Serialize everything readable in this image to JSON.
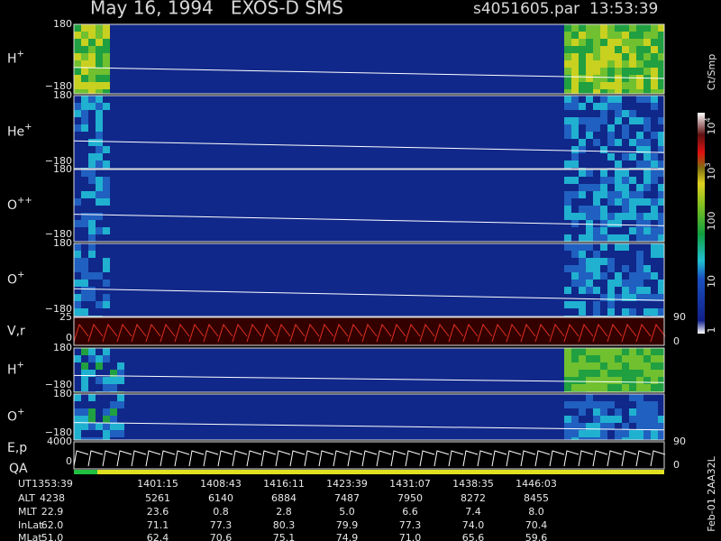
{
  "header": {
    "title": "May 16, 1994   EXOS-D SMS",
    "file": "s4051605.par  13:53:39"
  },
  "panels": [
    {
      "label": "H",
      "charge": "+",
      "ticks": [
        "180",
        "−180"
      ]
    },
    {
      "label": "He",
      "charge": "+",
      "ticks": [
        "180",
        "−180"
      ]
    },
    {
      "label": "O",
      "charge": "++",
      "ticks": [
        "180",
        "−180"
      ]
    },
    {
      "label": "O",
      "charge": "+",
      "ticks": [
        "180",
        "−180"
      ]
    },
    {
      "label": "V,r",
      "ticks": [
        "25",
        "0"
      ],
      "right_ticks": [
        "90",
        "0"
      ]
    },
    {
      "label": "H",
      "charge": "+",
      "ticks": [
        "180",
        "−180"
      ]
    },
    {
      "label": "O",
      "charge": "+",
      "ticks": [
        "180",
        "−180"
      ]
    },
    {
      "label": "E,p",
      "ticks": [
        "4000",
        "0"
      ],
      "right_ticks": [
        "90",
        "0"
      ]
    }
  ],
  "qa_label": "QA",
  "colorbar": {
    "title": "Ct/Smp",
    "labels": [
      {
        "base": "10",
        "exp": "4"
      },
      {
        "base": "10",
        "exp": "3"
      },
      {
        "base": "100"
      },
      {
        "base": "10"
      },
      {
        "base": "1"
      }
    ]
  },
  "footer_code": "Feb-01 2AA32L",
  "table": {
    "row_labels": [
      "UT",
      "ALT",
      "MLT",
      "InLat",
      "MLat"
    ],
    "rows": [
      [
        "1353:39",
        "1401:15",
        "1408:43",
        "1416:11",
        "1423:39",
        "1431:07",
        "1438:35",
        "1446:03"
      ],
      [
        "4238",
        "5261",
        "6140",
        "6884",
        "7487",
        "7950",
        "8272",
        "8455"
      ],
      [
        "22.9",
        "23.6",
        "0.8",
        "2.8",
        "5.0",
        "6.6",
        "7.4",
        "8.0"
      ],
      [
        "62.0",
        "71.1",
        "77.3",
        "80.3",
        "79.9",
        "77.3",
        "74.0",
        "70.4"
      ],
      [
        "51.0",
        "62.4",
        "70.6",
        "75.1",
        "74.9",
        "71.0",
        "65.6",
        "59.6"
      ]
    ]
  }
}
